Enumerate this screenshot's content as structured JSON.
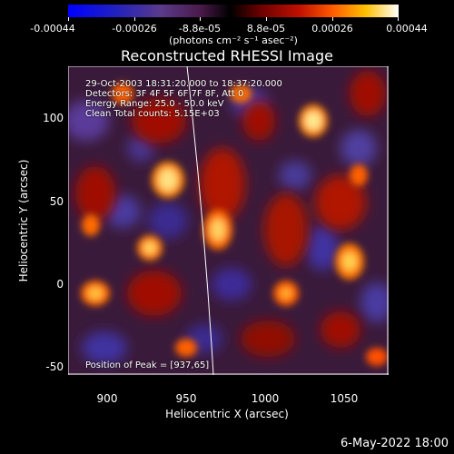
{
  "colorbar": {
    "ticks": [
      "-0.00044",
      "-0.00026",
      "-8.8e-05",
      "8.8e-05",
      "0.00026",
      "0.00044"
    ],
    "units": "(photons cm⁻² s⁻¹ asec⁻²)"
  },
  "title": "Reconstructed RHESSI Image",
  "info": {
    "line1": "29-Oct-2003 18:31:20.000 to 18:37:20.000",
    "line2": "Detectors: 3F 4F 5F 6F 7F 8F, Att 0",
    "line3": "Energy Range: 25.0 - 50.0 keV",
    "line4": "Clean     Total counts: 5.15E+03",
    "peak": "Position of Peak = [937,65]"
  },
  "axes": {
    "xlabel": "Heliocentric X (arcsec)",
    "ylabel": "Heliocentric Y (arcsec)",
    "xticks": [
      "900",
      "950",
      "1000",
      "1050"
    ],
    "yticks": [
      "100",
      "50",
      "0",
      "-50"
    ]
  },
  "datestamp": "6-May-2022 18:00",
  "colors": {
    "positive_peak": "#ffffd0",
    "mid_positive": "#ff6a00",
    "negative": "#4030a0",
    "background": "#3a1a3a",
    "limb_line": "#ffffff"
  }
}
